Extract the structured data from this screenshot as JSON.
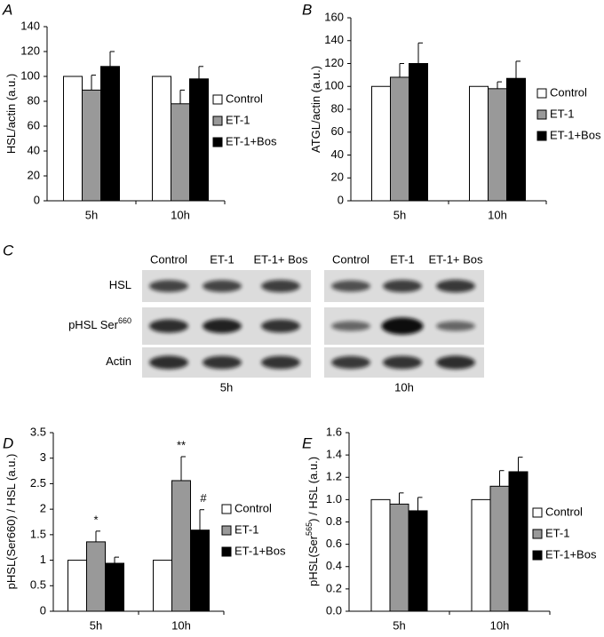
{
  "chart_data": [
    {
      "type": "bar",
      "panel": "A",
      "ylabel": [
        "HSL/actin (a.u.)"
      ],
      "categories": [
        "5h",
        "10h"
      ],
      "series": [
        {
          "name": "Control",
          "color": "#ffffff",
          "values": [
            100,
            100
          ],
          "errors": [
            null,
            null
          ]
        },
        {
          "name": "ET-1",
          "color": "#999999",
          "values": [
            89,
            78
          ],
          "errors": [
            12,
            11
          ]
        },
        {
          "name": "ET-1+Bos",
          "color": "#000000",
          "values": [
            108,
            98
          ],
          "errors": [
            12,
            10
          ]
        }
      ],
      "ylim": [
        0,
        140
      ],
      "yticks": [
        0,
        20,
        40,
        60,
        80,
        100,
        120,
        140
      ],
      "legend": "right"
    },
    {
      "type": "bar",
      "panel": "B",
      "ylabel": [
        "ATGL/actin (a.u.)"
      ],
      "categories": [
        "5h",
        "10h"
      ],
      "series": [
        {
          "name": "Control",
          "color": "#ffffff",
          "values": [
            100,
            100
          ],
          "errors": [
            null,
            null
          ]
        },
        {
          "name": "ET-1",
          "color": "#999999",
          "values": [
            108,
            98
          ],
          "errors": [
            12,
            6
          ]
        },
        {
          "name": "ET-1+Bos",
          "color": "#000000",
          "values": [
            120,
            107
          ],
          "errors": [
            18,
            15
          ]
        }
      ],
      "ylim": [
        0,
        160
      ],
      "yticks": [
        0,
        20,
        40,
        60,
        80,
        100,
        120,
        140,
        160
      ],
      "legend": "right"
    },
    {
      "type": "bar",
      "panel": "D",
      "ylabel": [
        "pHSL(Ser660) / HSL (a.u.)"
      ],
      "categories": [
        "5h",
        "10h"
      ],
      "series": [
        {
          "name": "Control",
          "color": "#ffffff",
          "values": [
            1,
            1
          ],
          "errors": [
            null,
            null
          ]
        },
        {
          "name": "ET-1",
          "color": "#999999",
          "values": [
            1.36,
            2.56
          ],
          "errors": [
            0.21,
            0.47
          ]
        },
        {
          "name": "ET-1+Bos",
          "color": "#000000",
          "values": [
            0.94,
            1.59
          ],
          "errors": [
            0.12,
            0.4
          ]
        }
      ],
      "annotations": [
        {
          "text": "*",
          "series": "ET-1",
          "category": "5h"
        },
        {
          "text": "**",
          "series": "ET-1",
          "category": "10h"
        },
        {
          "text": "#",
          "series": "ET-1+Bos",
          "category": "10h"
        }
      ],
      "ylim": [
        0,
        3.5
      ],
      "yticks": [
        0,
        0.5,
        1,
        1.5,
        2,
        2.5,
        3,
        3.5
      ],
      "legend": "right"
    },
    {
      "type": "bar",
      "panel": "E",
      "ylabel": [
        "pHSL(Ser",
        "565",
        ") / HSL (a.u.)"
      ],
      "categories": [
        "5h",
        "10h"
      ],
      "series": [
        {
          "name": "Control",
          "color": "#ffffff",
          "values": [
            1,
            1
          ],
          "errors": [
            null,
            null
          ]
        },
        {
          "name": "ET-1",
          "color": "#999999",
          "values": [
            0.96,
            1.12
          ],
          "errors": [
            0.1,
            0.14
          ]
        },
        {
          "name": "ET-1+Bos",
          "color": "#000000",
          "values": [
            0.9,
            1.25
          ],
          "errors": [
            0.12,
            0.13
          ]
        }
      ],
      "ylim": [
        0,
        1.6
      ],
      "yticks": [
        {
          "value": 0,
          "label": "0.0"
        },
        0.2,
        0.4,
        0.6,
        0.8,
        {
          "value": 1,
          "label": "1.0"
        },
        1.2,
        1.4,
        1.6
      ],
      "legend": "right"
    }
  ],
  "blot": {
    "panel": "C",
    "groups": [
      {
        "label": "5h",
        "lanes": [
          "Control",
          "ET-1",
          "ET-1+ Bos"
        ]
      },
      {
        "label": "10h",
        "lanes": [
          "Control",
          "ET-1",
          "ET-1+ Bos"
        ]
      }
    ],
    "rows": [
      [
        "HSL"
      ],
      [
        "pHSL Ser",
        "660"
      ],
      [
        "Actin"
      ]
    ]
  }
}
